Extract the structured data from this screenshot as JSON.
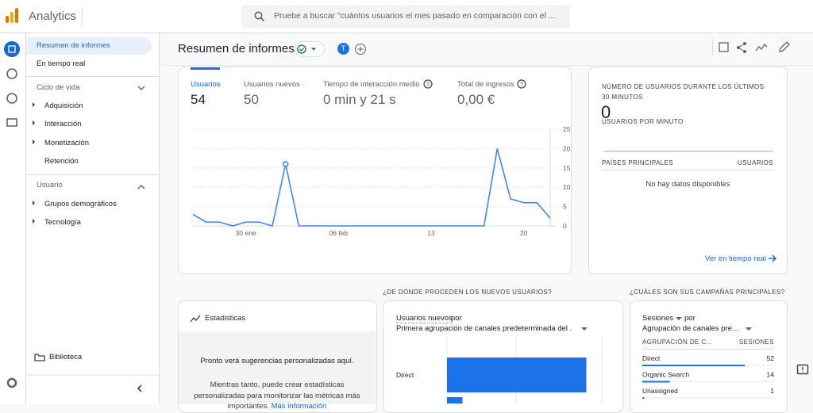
{
  "header": {
    "app_name": "Analytics",
    "search_placeholder": "Pruebe a buscar \"cuántos usuarios el mes pasado en comparación con el ..."
  },
  "sidebar": {
    "home": "Resumen de informes",
    "realtime": "En tiempo real",
    "sections": [
      {
        "title": "Ciclo de vida",
        "items": [
          "Adquisición",
          "Interacción",
          "Monetización",
          "Retención"
        ]
      },
      {
        "title": "Usuario",
        "items": [
          "Grupos demográficos",
          "Tecnología"
        ]
      }
    ],
    "library": "Biblioteca"
  },
  "page": {
    "title": "Resumen de informes",
    "avatar": "T"
  },
  "metrics": [
    {
      "label": "Usuarios",
      "value": "54"
    },
    {
      "label": "Usuarios nuevos",
      "value": "50"
    },
    {
      "label": "Tiempo de interacción medio",
      "value": "0 min y 21 s"
    },
    {
      "label": "Total de ingresos",
      "value": "0,00 €"
    }
  ],
  "line_chart": {
    "type": "line",
    "color": "#4285f4",
    "categories": [
      null,
      null,
      null,
      null,
      "30 ene",
      null,
      null,
      null,
      null,
      null,
      null,
      "06 feb",
      null,
      null,
      null,
      null,
      null,
      null,
      "13",
      null,
      null,
      null,
      null,
      null,
      null,
      "20",
      null,
      null
    ],
    "values": [
      3,
      1,
      1,
      0,
      1,
      1,
      0,
      16,
      0,
      0,
      0,
      0,
      0,
      0,
      0,
      0,
      0,
      0,
      0,
      0,
      0,
      0,
      0,
      20,
      7,
      6,
      6,
      2
    ],
    "ylim": [
      0,
      25
    ],
    "yticks": [
      0,
      5,
      10,
      15,
      20,
      25
    ],
    "grid": true
  },
  "realtime": {
    "title": "NÚMERO DE USUARIOS DURANTE LOS ÚLTIMOS 30 MINUTOS",
    "value": "0",
    "subtitle": "USUARIOS POR MINUTO",
    "columns": [
      "PAÍSES PRINCIPALES",
      "USUARIOS"
    ],
    "empty": "No hay datos disponibles",
    "link": "Ver en tiempo real"
  },
  "insights": {
    "title": "Estadísticas",
    "message": "Pronto verá sugerencias personalizadas aquí.",
    "text": "Mientras tanto, puede crear estadísticas personalizadas para monitorizar las métricas más importantes.",
    "link": "Más información"
  },
  "new_users": {
    "heading": "¿DE DÓNDE PROCEDEN LOS NUEVOS USUARIOS?",
    "metric": "Usuarios nuevos",
    "by": "por",
    "dimension": "Primera agrupación de canales predeterminada del ...",
    "chart": {
      "type": "bar",
      "color": "#1a73e8",
      "categories": [
        "Direct",
        null
      ],
      "values": [
        45,
        5
      ],
      "xlim": [
        0,
        50
      ]
    }
  },
  "campaigns": {
    "heading": "¿CUÁLES SON SUS CAMPAÑAS PRINCIPALES?",
    "metric": "Sesiones",
    "by": "por",
    "dimension": "Agrupación de canales pre...",
    "columns": [
      "AGRUPACIÓN DE C...",
      "SESIONES"
    ],
    "rows": [
      {
        "name": "Direct",
        "value": 52
      },
      {
        "name": "Organic Search",
        "value": 14
      },
      {
        "name": "Unassigned",
        "value": 1
      }
    ]
  }
}
